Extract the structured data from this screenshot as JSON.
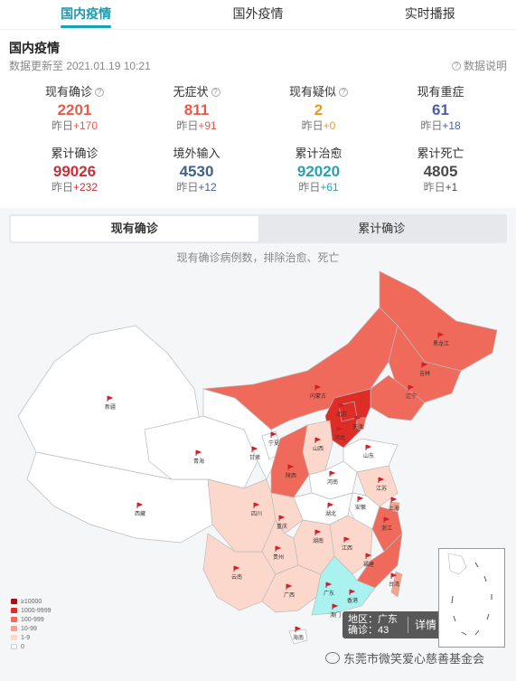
{
  "tabs": [
    {
      "label": "国内疫情",
      "active": true
    },
    {
      "label": "国外疫情",
      "active": false
    },
    {
      "label": "实时播报",
      "active": false
    }
  ],
  "header": {
    "title": "国内疫情",
    "update_time": "数据更新至 2021.01.19 10:21",
    "explain_label": "数据说明"
  },
  "stats": [
    {
      "label": "现有确诊",
      "value": "2201",
      "delta_prefix": "昨日",
      "delta": "+170",
      "color": "#e8594a",
      "delta_color": "#e8594a",
      "help": true
    },
    {
      "label": "无症状",
      "value": "811",
      "delta_prefix": "昨日",
      "delta": "+91",
      "color": "#e8594a",
      "delta_color": "#e8594a",
      "help": true
    },
    {
      "label": "现有疑似",
      "value": "2",
      "delta_prefix": "昨日",
      "delta": "+0",
      "color": "#e89a1c",
      "delta_color": "#e89a1c",
      "help": true
    },
    {
      "label": "现有重症",
      "value": "61",
      "delta_prefix": "昨日",
      "delta": "+18",
      "color": "#4a5ea8",
      "delta_color": "#4a5ea8",
      "help": false
    },
    {
      "label": "累计确诊",
      "value": "99026",
      "delta_prefix": "昨日",
      "delta": "+232",
      "color": "#c9303a",
      "delta_color": "#c9303a",
      "help": false
    },
    {
      "label": "境外输入",
      "value": "4530",
      "delta_prefix": "昨日",
      "delta": "+12",
      "color": "#40618a",
      "delta_color": "#40618a",
      "help": false
    },
    {
      "label": "累计治愈",
      "value": "92020",
      "delta_prefix": "昨日",
      "delta": "+61",
      "color": "#2aa0b0",
      "delta_color": "#2aa0b0",
      "help": false
    },
    {
      "label": "累计死亡",
      "value": "4805",
      "delta_prefix": "昨日",
      "delta": "+1",
      "color": "#4a4a4a",
      "delta_color": "#4a4a4a",
      "help": false
    }
  ],
  "map": {
    "toggle": [
      {
        "label": "现有确诊",
        "active": true
      },
      {
        "label": "累计确诊",
        "active": false
      }
    ],
    "subtitle": "现有确诊病例数，排除治愈、死亡",
    "provinces": {
      "heilongjiang": "黑龙江",
      "jilin": "吉林",
      "liaoning": "辽宁",
      "neimenggu": "内蒙古",
      "beijing": "北京",
      "tianjin": "天津",
      "hebei": "河北",
      "shanxi": "山西",
      "shandong": "山东",
      "xinjiang": "新疆",
      "xizang": "西藏",
      "qinghai": "青海",
      "gansu": "甘肃",
      "ningxia": "宁夏",
      "shaanxi": "陕西",
      "henan": "河南",
      "jiangsu": "江苏",
      "shanghai": "上海",
      "anhui": "安徽",
      "hubei": "湖北",
      "sichuan": "四川",
      "chongqing": "重庆",
      "zhejiang": "浙江",
      "hunan": "湖南",
      "jiangxi": "江西",
      "guizhou": "贵州",
      "yunnan": "云南",
      "fujian": "福建",
      "taiwan": "台湾",
      "guangxi": "广西",
      "guangdong": "广东",
      "xianggang": "香港",
      "aomen": "澳门",
      "hainan": "海南"
    },
    "legend": [
      {
        "label": "≥10000",
        "color": "#a50f15"
      },
      {
        "label": "1000-9999",
        "color": "#de2d26"
      },
      {
        "label": "100-999",
        "color": "#ef6a5b"
      },
      {
        "label": "10-99",
        "color": "#f7a28f"
      },
      {
        "label": "1-9",
        "color": "#fcd8cc"
      },
      {
        "label": "0",
        "color": "#ffffff"
      }
    ],
    "tooltip": {
      "line1": "地区：广东",
      "line2": "确诊：43",
      "button": "详情"
    }
  },
  "watermark": "东莞市微笑爱心慈善基金会"
}
